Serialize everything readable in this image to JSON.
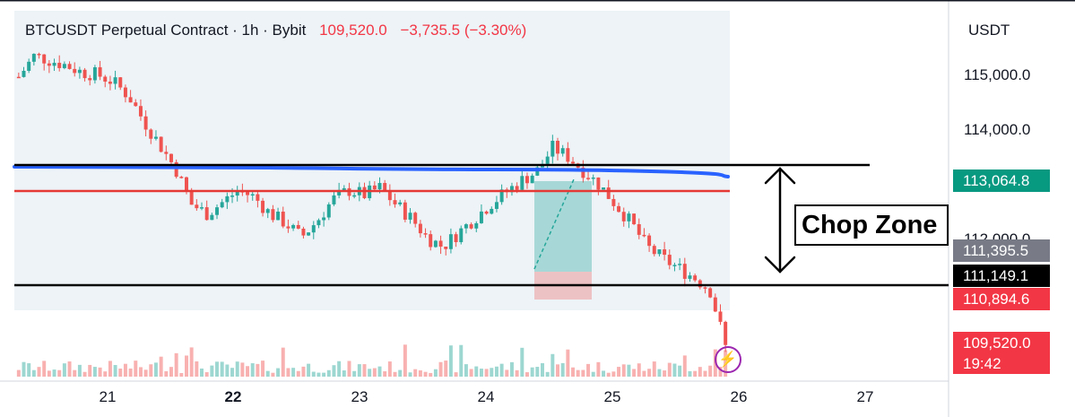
{
  "header": {
    "symbol": "BTCUSDT Perpetual Contract · 1h · Bybit",
    "last_price": "109,520.0",
    "change": "−3,735.5 (−3.30%)"
  },
  "price_axis": {
    "currency": "USDT",
    "labels": [
      "115,000.0",
      "114,000.0",
      "112,000.0"
    ]
  },
  "price_tags": [
    {
      "text": "113,064.8",
      "color": "#089981"
    },
    {
      "text": "111,395.5",
      "color": "#787b86"
    },
    {
      "text": "111,149.1",
      "color": "#000000"
    },
    {
      "text": "110,894.6",
      "color": "#f23645"
    },
    {
      "text": "109,520.0",
      "color": "#f23645"
    }
  ],
  "countdown": "19:42",
  "time_axis": {
    "labels": [
      "21",
      "22",
      "23",
      "24",
      "25",
      "26",
      "27"
    ],
    "bold": "22"
  },
  "annotation": {
    "label": "Chop Zone"
  },
  "colors": {
    "up": "#26a69a",
    "down": "#ef5350",
    "ma_line": "#2962ff",
    "resistance_red": "#e53935",
    "level_black": "#000000",
    "bolt": "#9c27b0"
  },
  "icons": {
    "bolt": "lightning-bolt-icon",
    "arrow": "double-headed-vertical-arrow"
  },
  "chart_data": {
    "type": "candlestick",
    "interval": "1h",
    "y_range": [
      108850,
      116600
    ],
    "close_path": [
      115200,
      115650,
      115550,
      115450,
      115300,
      115250,
      115100,
      114800,
      114250,
      113750,
      113250,
      112500,
      112300,
      112550,
      112800,
      112650,
      112300,
      112100,
      111800,
      112150,
      112600,
      112800,
      112700,
      112850,
      112500,
      112200,
      111800,
      111600,
      111900,
      112200,
      112500,
      112750,
      113000,
      113200,
      113700,
      113500,
      113200,
      112900,
      112500,
      112100,
      111600,
      111350,
      111150,
      110950,
      110700,
      109520
    ],
    "levels": {
      "top_black": 113350,
      "red": 112900,
      "bottom_black": 111149.1
    },
    "chop_zone": [
      111149.1,
      113350
    ]
  }
}
